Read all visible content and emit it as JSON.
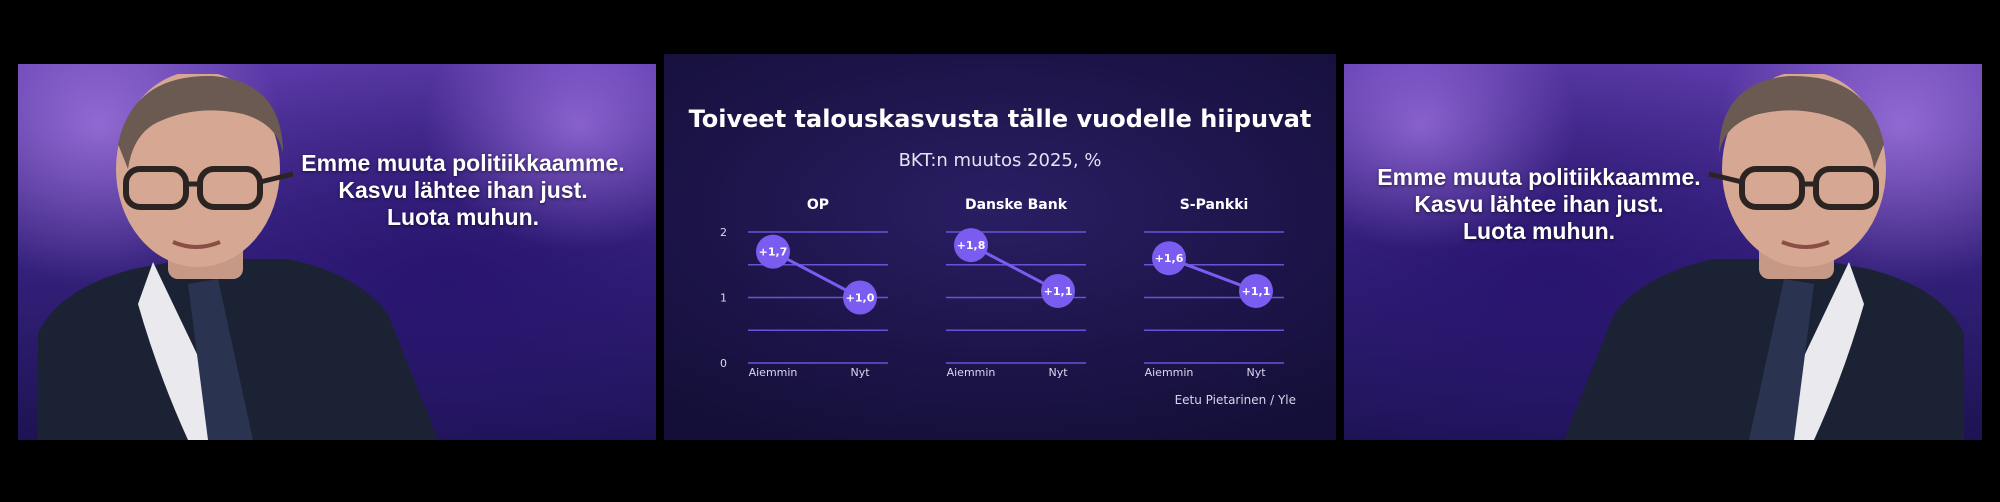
{
  "left_photo": {
    "quote_lines": [
      "Emme muuta politiikkaamme.",
      "Kasvu lähtee ihan just.",
      "Luota muhun."
    ]
  },
  "right_photo": {
    "quote_lines": [
      "Emme muuta politiikkaamme.",
      "Kasvu lähtee ihan just.",
      "Luota muhun."
    ]
  },
  "chart_panel": {
    "title": "Toiveet talouskasvusta tälle vuodelle hiipuvat",
    "subtitle": "BKT:n muutos 2025, %",
    "credit": "Eetu Pietarinen / Yle"
  },
  "colors": {
    "accent": "#7b5cf0",
    "grid": "#6a52d8",
    "label": "#dcd8ee"
  },
  "chart_data": [
    {
      "type": "line",
      "title": "OP",
      "categories": [
        "Aiemmin",
        "Nyt"
      ],
      "values": [
        1.7,
        1.0
      ],
      "labels": [
        "+1,7",
        "+1,0"
      ],
      "yticks": [
        0,
        1,
        2
      ],
      "ylim": [
        0,
        2
      ],
      "grid": true
    },
    {
      "type": "line",
      "title": "Danske Bank",
      "categories": [
        "Aiemmin",
        "Nyt"
      ],
      "values": [
        1.8,
        1.1
      ],
      "labels": [
        "+1,8",
        "+1,1"
      ],
      "ylim": [
        0,
        2
      ],
      "grid": true
    },
    {
      "type": "line",
      "title": "S-Pankki",
      "categories": [
        "Aiemmin",
        "Nyt"
      ],
      "values": [
        1.6,
        1.1
      ],
      "labels": [
        "+1,6",
        "+1,1"
      ],
      "ylim": [
        0,
        2
      ],
      "grid": true
    }
  ]
}
